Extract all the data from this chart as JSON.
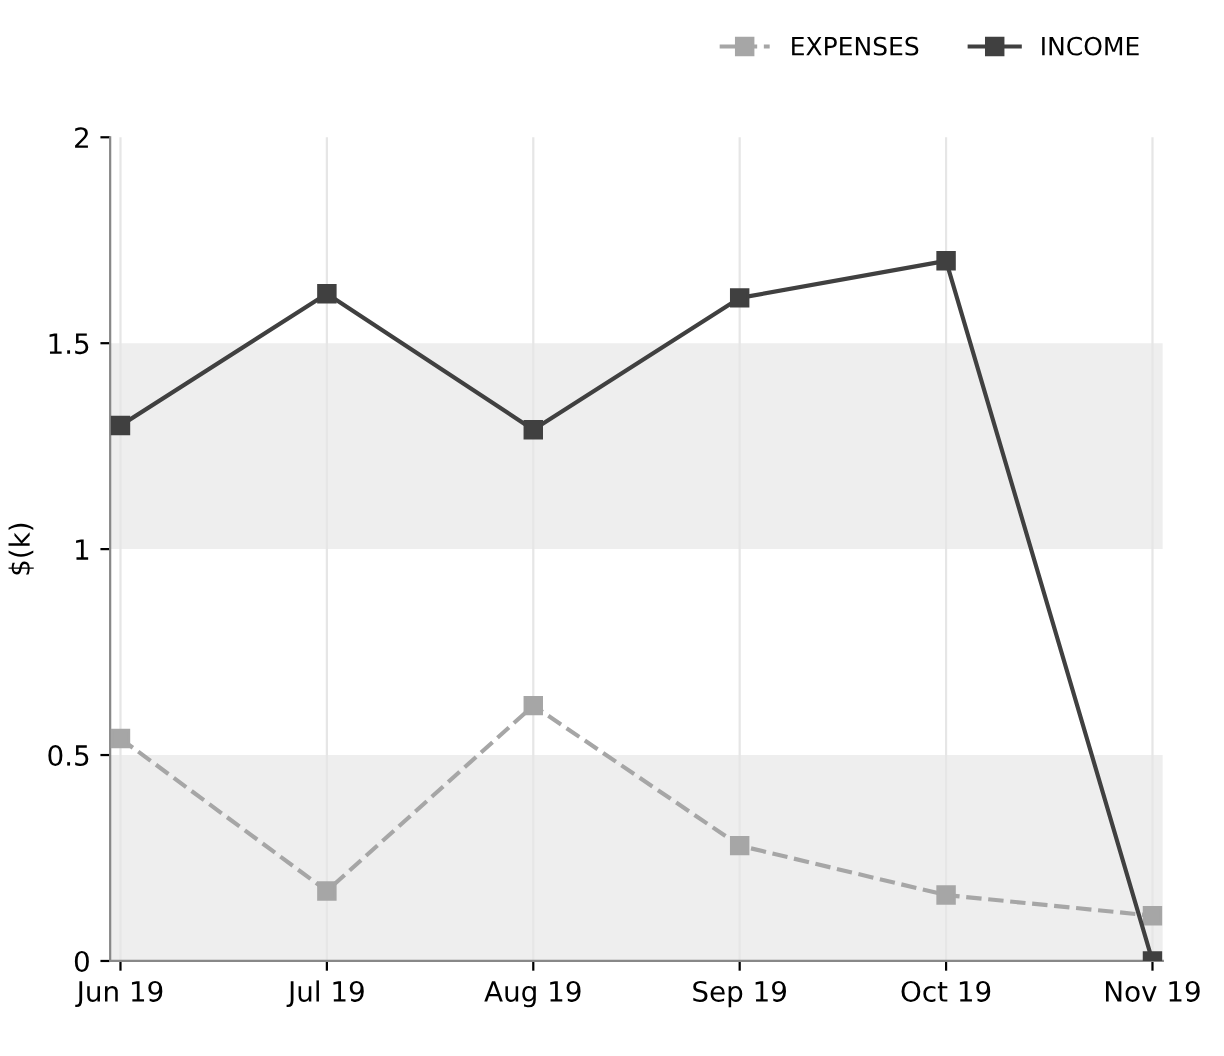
{
  "chart_data": {
    "type": "line",
    "ylabel": "$(k)",
    "categories": [
      "Jun 19",
      "Jul 19",
      "Aug 19",
      "Sep 19",
      "Oct 19",
      "Nov 19"
    ],
    "series": [
      {
        "name": "EXPENSES",
        "color": "#a6a6a6",
        "line_style": "dashed",
        "values": [
          0.54,
          0.17,
          0.62,
          0.28,
          0.16,
          0.11
        ]
      },
      {
        "name": "INCOME",
        "color": "#404040",
        "line_style": "solid",
        "values": [
          1.3,
          1.62,
          1.29,
          1.61,
          1.7,
          0
        ]
      }
    ],
    "ylim": [
      0,
      2
    ],
    "yticks": [
      0,
      0.5,
      1,
      1.5,
      2
    ],
    "bands": [
      {
        "axis": "y",
        "from": 0,
        "to": 0.5,
        "color": "#eeeeee"
      },
      {
        "axis": "y",
        "from": 1,
        "to": 1.5,
        "color": "#eeeeee"
      }
    ],
    "grid": "x",
    "legend": "top right",
    "marker": "square"
  }
}
